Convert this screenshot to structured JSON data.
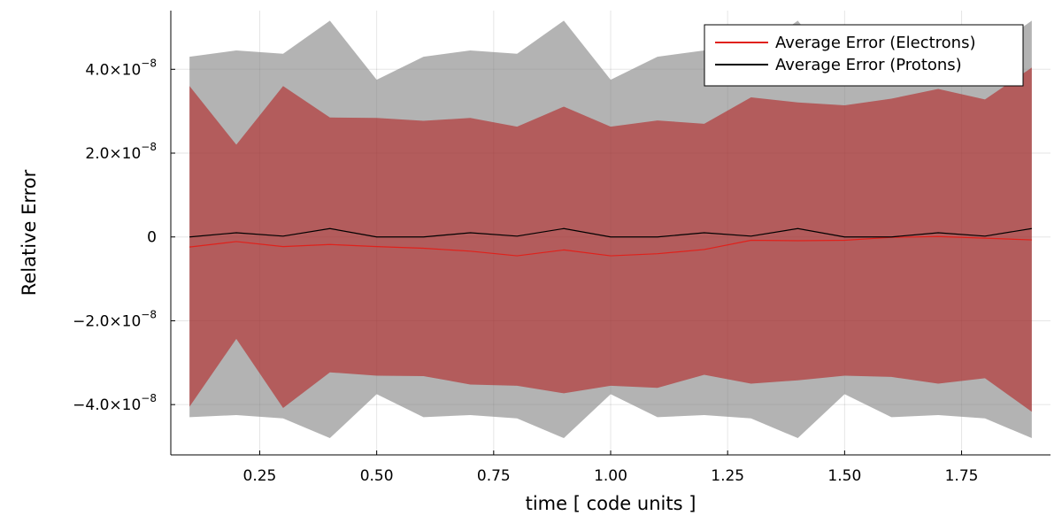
{
  "chart_data": {
    "type": "line",
    "xlabel": "time [ code units ]",
    "ylabel": "Relative Error",
    "xlim": [
      0.06,
      1.94
    ],
    "ylim": [
      -5.2e-08,
      5.4e-08
    ],
    "grid": true,
    "legend_position": "top-right",
    "x_ticks": [
      {
        "value": 0.25,
        "label": "0.25"
      },
      {
        "value": 0.5,
        "label": "0.50"
      },
      {
        "value": 0.75,
        "label": "0.75"
      },
      {
        "value": 1.0,
        "label": "1.00"
      },
      {
        "value": 1.25,
        "label": "1.25"
      },
      {
        "value": 1.5,
        "label": "1.50"
      },
      {
        "value": 1.75,
        "label": "1.75"
      }
    ],
    "y_ticks": [
      {
        "value": 4e-08,
        "label": "4.0×10",
        "exp": "−8"
      },
      {
        "value": 2e-08,
        "label": "2.0×10",
        "exp": "−8"
      },
      {
        "value": 0,
        "label": "0",
        "exp": ""
      },
      {
        "value": -2e-08,
        "label": "−2.0×10",
        "exp": "−8"
      },
      {
        "value": -4e-08,
        "label": "−4.0×10",
        "exp": "−8"
      }
    ],
    "x": [
      0.1,
      0.2,
      0.3,
      0.4,
      0.5,
      0.6,
      0.7,
      0.8,
      0.9,
      1.0,
      1.1,
      1.2,
      1.3,
      1.4,
      1.5,
      1.6,
      1.7,
      1.8,
      1.9
    ],
    "series": [
      {
        "name": "Average Error (Electrons)",
        "color": "#e0211b",
        "band_color": "#b22222",
        "values": [
          -2.4e-09,
          -1.1e-09,
          -2.3e-09,
          -1.8e-09,
          -2.3e-09,
          -2.7e-09,
          -3.4e-09,
          -4.5e-09,
          -3.1e-09,
          -4.5e-09,
          -4e-09,
          -3e-09,
          -8e-10,
          -9e-10,
          -8e-10,
          -1e-10,
          1e-10,
          -3e-10,
          -7e-10
        ],
        "upper": [
          3.6e-08,
          2.2e-08,
          3.6e-08,
          2.85e-08,
          2.84e-08,
          2.77e-08,
          2.84e-08,
          2.63e-08,
          3.11e-08,
          2.63e-08,
          2.78e-08,
          2.7e-08,
          3.33e-08,
          3.21e-08,
          3.14e-08,
          3.3e-08,
          3.53e-08,
          3.28e-08,
          4.04e-08
        ],
        "lower": [
          -4.05e-08,
          -2.43e-08,
          -4.08e-08,
          -3.23e-08,
          -3.31e-08,
          -3.32e-08,
          -3.52e-08,
          -3.55e-08,
          -3.73e-08,
          -3.55e-08,
          -3.6e-08,
          -3.29e-08,
          -3.5e-08,
          -3.42e-08,
          -3.31e-08,
          -3.34e-08,
          -3.5e-08,
          -3.37e-08,
          -4.17e-08
        ]
      },
      {
        "name": "Average Error (Protons)",
        "color": "#000000",
        "band_color": "#808080",
        "values": [
          0,
          1e-09,
          2e-10,
          2e-09,
          0,
          0,
          1e-09,
          2e-10,
          2e-09,
          0,
          0,
          1e-09,
          2e-10,
          2e-09,
          0,
          0,
          1e-09,
          2e-10,
          2e-09
        ],
        "upper": [
          4.3e-08,
          4.45e-08,
          4.37e-08,
          5.16e-08,
          3.75e-08,
          4.3e-08,
          4.45e-08,
          4.37e-08,
          5.16e-08,
          3.75e-08,
          4.3e-08,
          4.45e-08,
          4.37e-08,
          5.16e-08,
          3.75e-08,
          4.3e-08,
          4.45e-08,
          4.37e-08,
          5.16e-08
        ],
        "lower": [
          -4.3e-08,
          -4.25e-08,
          -4.33e-08,
          -4.8e-08,
          -3.75e-08,
          -4.3e-08,
          -4.25e-08,
          -4.33e-08,
          -4.8e-08,
          -3.75e-08,
          -4.3e-08,
          -4.25e-08,
          -4.33e-08,
          -4.8e-08,
          -3.75e-08,
          -4.3e-08,
          -4.25e-08,
          -4.33e-08,
          -4.8e-08
        ]
      }
    ]
  }
}
